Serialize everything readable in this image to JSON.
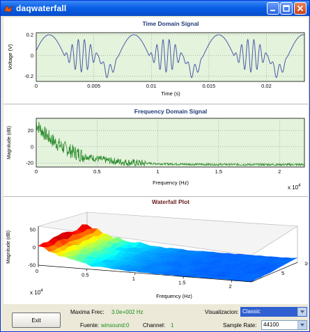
{
  "window": {
    "title": "daqwaterfall"
  },
  "plots": {
    "time": {
      "title": "Time Domain Signal",
      "xlabel": "Time (s)",
      "ylabel": "Voltage (V)",
      "xticks": [
        "0",
        "0.005",
        "0.01",
        "0.015",
        "0.02"
      ],
      "yticks": [
        "0.2",
        "0",
        "-0.2"
      ]
    },
    "freq": {
      "title": "Frequency Domain Signal",
      "xlabel": "Frequency (Hz)",
      "ylabel": "Magnitude (dB)",
      "xticks": [
        "0",
        "0.5",
        "1",
        "1.5",
        "2"
      ],
      "yticks": [
        "20",
        "0",
        "-20"
      ],
      "exponent": "x 10",
      "exponent_power": "4"
    },
    "waterfall": {
      "title": "Waterfall Plot",
      "xlabel": "Frequency (Hz)",
      "ylabel": "Magnitude (dB)",
      "xticks": [
        "0",
        "0.5",
        "1",
        "1.5",
        "2"
      ],
      "yticks": [
        "50",
        "0",
        "-50"
      ],
      "depth_ticks": [
        "5",
        "10"
      ],
      "exponent": "x 10",
      "exponent_power": "4"
    }
  },
  "chart_data": [
    {
      "type": "line",
      "title": "Time Domain Signal",
      "xlabel": "Time (s)",
      "ylabel": "Voltage (V)",
      "xlim": [
        0,
        0.0233
      ],
      "ylim": [
        -0.25,
        0.22
      ],
      "grid": true,
      "series": [
        {
          "color": "#4a5aa8",
          "signal": "periodic ~0.00736 s, smooth lobe 0.2 plus burst oscillation"
        }
      ]
    },
    {
      "type": "line",
      "title": "Frequency Domain Signal",
      "xlabel": "Frequency (Hz)",
      "ylabel": "Magnitude (dB)",
      "xlim": [
        0,
        22050
      ],
      "ylim": [
        -25,
        35
      ],
      "grid": true,
      "series": [
        {
          "color": "#2a8a2a",
          "shape": "decaying from ~28 dB at 0 Hz to ~-22 dB above 10000 Hz"
        }
      ]
    },
    {
      "type": "area",
      "title": "Waterfall Plot",
      "xlabel": "Frequency (Hz)",
      "ylabel": "Magnitude (dB)",
      "xlim": [
        0,
        22050
      ],
      "ylim": [
        -50,
        60
      ],
      "depth": [
        0,
        10
      ],
      "colormap": "jet"
    }
  ],
  "controls": {
    "exit_label": "Exit",
    "max_freq_label": "Maxima Frec:",
    "max_freq_value": "3.0e+002 Hz",
    "source_label": "Fuente:",
    "source_value": "winsound:0",
    "channel_label": "Channel:",
    "channel_value": "1",
    "viz_label": "Visualizacion:",
    "viz_value": "Classic",
    "rate_label": "Sample Rate:",
    "rate_value": "44100"
  },
  "colors": {
    "plot_bg": "#e4f3dc",
    "time_line": "#4a5aa8",
    "freq_line": "#2a8a2a",
    "title_color": "#1f3b79",
    "value_green": "#1a8f1a",
    "waterfall_title": "#6b2020"
  }
}
